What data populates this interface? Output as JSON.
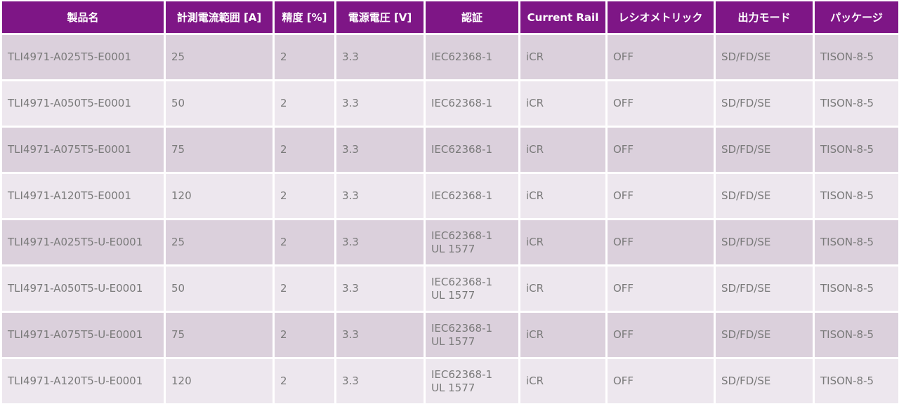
{
  "colors": {
    "header_bg": "#7e1686",
    "row_dark": "#dbd0dc",
    "row_light": "#ede7ee",
    "text": "#7a7a7a"
  },
  "headers": [
    "製品名",
    "計測電流範囲 [A]",
    "精度 [%]",
    "電源電圧 [V]",
    "認証",
    "Current Rail",
    "レシオメトリック",
    "出力モード",
    "パッケージ"
  ],
  "rows": [
    {
      "product": "TLI4971-A025T5-E0001",
      "range": "25",
      "accuracy": "2",
      "voltage": "3.3",
      "cert": [
        "IEC62368-1",
        ""
      ],
      "rail": "iCR",
      "ratiometric": "OFF",
      "mode": "SD/FD/SE",
      "package": "TISON-8-5"
    },
    {
      "product": "TLI4971-A050T5-E0001",
      "range": "50",
      "accuracy": "2",
      "voltage": "3.3",
      "cert": [
        "IEC62368-1",
        ""
      ],
      "rail": "iCR",
      "ratiometric": "OFF",
      "mode": "SD/FD/SE",
      "package": "TISON-8-5"
    },
    {
      "product": "TLI4971-A075T5-E0001",
      "range": "75",
      "accuracy": "2",
      "voltage": "3.3",
      "cert": [
        "IEC62368-1",
        ""
      ],
      "rail": "iCR",
      "ratiometric": "OFF",
      "mode": "SD/FD/SE",
      "package": "TISON-8-5"
    },
    {
      "product": "TLI4971-A120T5-E0001",
      "range": "120",
      "accuracy": "2",
      "voltage": "3.3",
      "cert": [
        "IEC62368-1",
        ""
      ],
      "rail": "iCR",
      "ratiometric": "OFF",
      "mode": "SD/FD/SE",
      "package": "TISON-8-5"
    },
    {
      "product": "TLI4971-A025T5-U-E0001",
      "range": "25",
      "accuracy": "2",
      "voltage": "3.3",
      "cert": [
        "IEC62368-1",
        "UL 1577"
      ],
      "rail": "iCR",
      "ratiometric": "OFF",
      "mode": "SD/FD/SE",
      "package": "TISON-8-5"
    },
    {
      "product": "TLI4971-A050T5-U-E0001",
      "range": "50",
      "accuracy": "2",
      "voltage": "3.3",
      "cert": [
        "IEC62368-1",
        "UL 1577"
      ],
      "rail": "iCR",
      "ratiometric": "OFF",
      "mode": "SD/FD/SE",
      "package": "TISON-8-5"
    },
    {
      "product": "TLI4971-A075T5-U-E0001",
      "range": "75",
      "accuracy": "2",
      "voltage": "3.3",
      "cert": [
        "IEC62368-1",
        "UL 1577"
      ],
      "rail": "iCR",
      "ratiometric": "OFF",
      "mode": "SD/FD/SE",
      "package": "TISON-8-5"
    },
    {
      "product": "TLI4971-A120T5-U-E0001",
      "range": "120",
      "accuracy": "2",
      "voltage": "3.3",
      "cert": [
        "IEC62368-1",
        "UL 1577"
      ],
      "rail": "iCR",
      "ratiometric": "OFF",
      "mode": "SD/FD/SE",
      "package": "TISON-8-5"
    }
  ]
}
